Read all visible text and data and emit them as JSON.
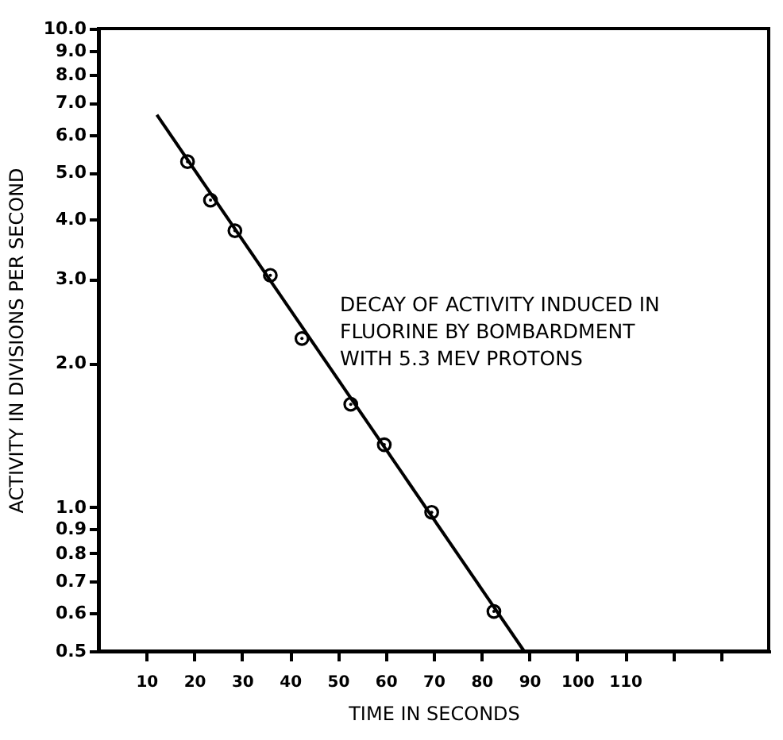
{
  "chart_data": {
    "type": "scatter",
    "xlabel": "TIME  IN  SECONDS",
    "ylabel": "ACTIVITY  IN  DIVISIONS  PER  SECOND",
    "log": "y",
    "grid": false,
    "line_style": "solid",
    "annotations": [
      "DECAY OF ACTIVITY INDUCED IN\nFLUORINE  BY  BOMBARDMENT\nWITH  5.3 MEV PROTONS"
    ],
    "xlim": [
      0,
      140
    ],
    "xticks": [
      10,
      20,
      30,
      40,
      50,
      60,
      70,
      80,
      90,
      100,
      110,
      {
        "value": 120,
        "label": null
      },
      {
        "value": 130,
        "label": null
      }
    ],
    "ylim": [
      0.5,
      10
    ],
    "yticks": [
      0.5,
      0.6,
      0.7,
      0.8,
      0.9,
      {
        "value": 1,
        "label": "1.0"
      },
      {
        "value": 2,
        "label": "2.0"
      },
      {
        "value": 3,
        "label": "3.0"
      },
      {
        "value": 4,
        "label": "4.0"
      },
      {
        "value": 5,
        "label": "5.0"
      },
      {
        "value": 6,
        "label": "6.0"
      },
      {
        "value": 7,
        "label": "7.0"
      },
      {
        "value": 8,
        "label": "8.0"
      },
      {
        "value": 9,
        "label": "9.0"
      },
      {
        "value": 10,
        "label": "10.0"
      }
    ],
    "series": [
      {
        "marker": "circle",
        "color": "#000000",
        "x": [
          18.6,
          23.4,
          28.5,
          35.9,
          42.5,
          52.7,
          59.7,
          69.6,
          82.6
        ],
        "values": [
          5.27,
          4.38,
          3.78,
          3.05,
          2.25,
          1.64,
          1.35,
          0.975,
          0.605
        ]
      },
      {
        "type": "line",
        "color": "#000000",
        "x": [
          12.2,
          88.9
        ],
        "values": [
          6.6,
          0.5
        ]
      }
    ]
  }
}
